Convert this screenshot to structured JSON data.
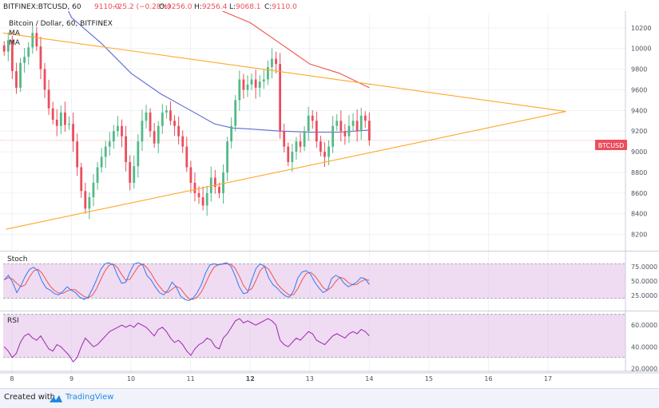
{
  "header": {
    "symbol": "BITFINEX:BTCUSD, 60",
    "last": "9110.0",
    "change": "−25.2 (−0.28%)",
    "o_label": "O:",
    "o": "9256.0",
    "h_label": "H:",
    "h": "9256.4",
    "l_label": "L:",
    "l": "9068.1",
    "c_label": "C:",
    "c": "9110.0",
    "title": "Bitcoin / Dollar, 60, BITFINEX",
    "ma1": "MA",
    "ma2": "MA"
  },
  "footer": {
    "created_with": "Created with",
    "brand": "TradingView"
  },
  "colors": {
    "up": "#53b987",
    "down": "#eb4d5c",
    "triangle": "#ffa726",
    "ma_fast": "#5e6ad2",
    "ma_slow": "#ef5350",
    "stoch_k": "#3179f5",
    "stoch_d": "#ef5350",
    "rsi": "#9c27b0",
    "band": "#e1bee7"
  },
  "chart_data": [
    {
      "type": "line",
      "panel": "price",
      "label": "BTCUSD",
      "y_ticks": [
        8200,
        8400,
        8600,
        8800,
        9000,
        9200,
        9400,
        9600,
        9800,
        10000,
        10200
      ],
      "ylim": [
        8050,
        10330
      ],
      "x_ticks": [
        "8",
        "9",
        "10",
        "11",
        "12",
        "13",
        "14",
        "15",
        "16",
        "17"
      ],
      "x_tick_days": [
        8,
        9,
        10,
        11,
        12,
        13,
        14,
        15,
        16,
        17
      ],
      "xlim": [
        7.8,
        18.3
      ],
      "closes": [
        9970,
        10080,
        9780,
        9620,
        9860,
        9920,
        10010,
        10150,
        10020,
        9800,
        9600,
        9420,
        9310,
        9250,
        9380,
        9260,
        9270,
        9100,
        8850,
        8620,
        8450,
        8560,
        8700,
        8850,
        8950,
        9050,
        9100,
        9200,
        9250,
        9150,
        8900,
        8700,
        8860,
        9100,
        9300,
        9380,
        9200,
        9080,
        9250,
        9380,
        9400,
        9300,
        9250,
        9150,
        9050,
        8850,
        8700,
        8600,
        8560,
        8480,
        8600,
        8750,
        8660,
        8600,
        8800,
        9100,
        9250,
        9500,
        9700,
        9600,
        9650,
        9700,
        9620,
        9680,
        9700,
        9820,
        9900,
        9850,
        9200,
        9050,
        8900,
        9000,
        9100,
        9050,
        9200,
        9350,
        9300,
        9100,
        9000,
        8950,
        9050,
        9250,
        9300,
        9200,
        9150,
        9250,
        9300,
        9200,
        9350,
        9300,
        9110
      ],
      "ma_fast": {
        "start": 10380,
        "points": [
          [
            7.8,
            11500
          ],
          [
            8.5,
            10900
          ],
          [
            9.0,
            10300
          ],
          [
            9.5,
            10050
          ],
          [
            10.0,
            9760
          ],
          [
            10.5,
            9560
          ],
          [
            11.0,
            9400
          ],
          [
            11.4,
            9270
          ],
          [
            11.7,
            9230
          ],
          [
            12.0,
            9220
          ],
          [
            12.5,
            9200
          ],
          [
            13.0,
            9190
          ],
          [
            13.5,
            9190
          ],
          [
            14.0,
            9210
          ]
        ]
      },
      "ma_slow": {
        "points": [
          [
            11.0,
            10450
          ],
          [
            11.5,
            10370
          ],
          [
            12.0,
            10250
          ],
          [
            12.5,
            10050
          ],
          [
            13.0,
            9850
          ],
          [
            13.5,
            9760
          ],
          [
            14.0,
            9620
          ]
        ]
      },
      "triangle": {
        "upper": [
          [
            7.85,
            10150
          ],
          [
            17.3,
            9390
          ]
        ],
        "lower": [
          [
            7.9,
            8250
          ],
          [
            17.3,
            9390
          ]
        ]
      },
      "last_price": 9110
    },
    {
      "type": "line",
      "panel": "stoch",
      "title": "Stoch",
      "y_ticks": [
        25,
        50,
        75
      ],
      "y_tick_labels": [
        "25.0000",
        "50.0000",
        "75.0000"
      ],
      "ylim": [
        0,
        100
      ],
      "band": [
        20,
        80
      ],
      "k": [
        52,
        60,
        48,
        30,
        42,
        58,
        70,
        74,
        68,
        50,
        38,
        34,
        28,
        26,
        32,
        40,
        34,
        30,
        22,
        18,
        22,
        36,
        52,
        70,
        80,
        82,
        78,
        60,
        46,
        48,
        66,
        80,
        82,
        78,
        60,
        52,
        40,
        30,
        26,
        34,
        48,
        40,
        24,
        18,
        16,
        20,
        30,
        44,
        64,
        78,
        80,
        78,
        80,
        82,
        76,
        60,
        40,
        28,
        30,
        52,
        72,
        80,
        76,
        56,
        44,
        38,
        30,
        24,
        22,
        34,
        56,
        66,
        68,
        62,
        48,
        38,
        30,
        34,
        54,
        60,
        56,
        46,
        40,
        44,
        48,
        56,
        54,
        44
      ]
    },
    {
      "type": "line",
      "panel": "rsi",
      "title": "RSI",
      "y_ticks": [
        20,
        40,
        60
      ],
      "y_tick_labels": [
        "20.0000",
        "40.0000",
        "60.0000"
      ],
      "ylim": [
        18,
        72
      ],
      "band": [
        30,
        70
      ],
      "values": [
        40,
        36,
        30,
        34,
        44,
        50,
        52,
        48,
        46,
        50,
        44,
        38,
        36,
        42,
        40,
        36,
        32,
        26,
        30,
        40,
        48,
        44,
        40,
        42,
        46,
        50,
        54,
        56,
        58,
        60,
        58,
        60,
        58,
        62,
        60,
        58,
        54,
        50,
        56,
        58,
        54,
        48,
        44,
        46,
        42,
        36,
        32,
        38,
        42,
        44,
        48,
        46,
        40,
        38,
        48,
        52,
        58,
        64,
        66,
        62,
        64,
        62,
        60,
        62,
        64,
        66,
        64,
        60,
        46,
        42,
        40,
        44,
        48,
        46,
        50,
        54,
        52,
        46,
        44,
        42,
        46,
        50,
        52,
        50,
        48,
        52,
        54,
        52,
        56,
        54,
        50
      ]
    }
  ]
}
